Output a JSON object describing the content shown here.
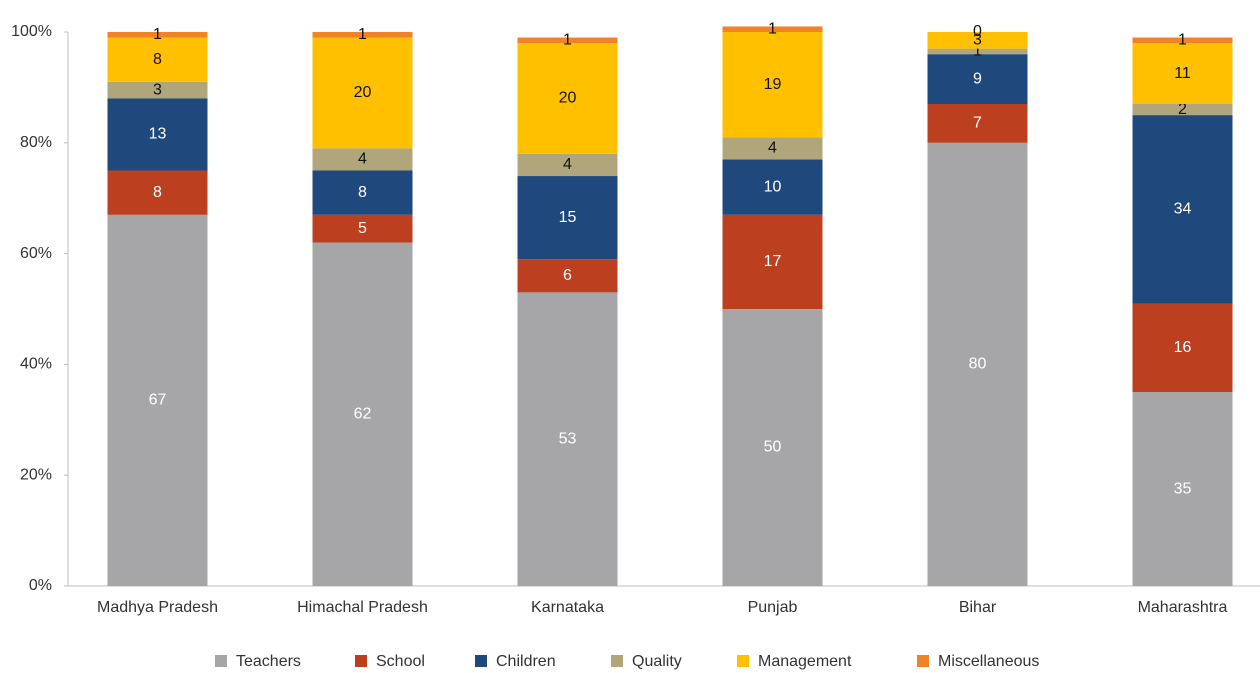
{
  "chart_data": {
    "type": "bar",
    "stacked": true,
    "categories": [
      "Madhya Pradesh",
      "Himachal Pradesh",
      "Karnataka",
      "Punjab",
      "Bihar",
      "Maharashtra"
    ],
    "series": [
      {
        "name": "Teachers",
        "color": "#a6a6a8",
        "values": [
          67,
          62,
          53,
          50,
          80,
          35
        ]
      },
      {
        "name": "School",
        "color": "#bc4020",
        "values": [
          8,
          5,
          6,
          17,
          7,
          16
        ]
      },
      {
        "name": "Children",
        "color": "#1f497d",
        "values": [
          13,
          8,
          15,
          10,
          9,
          34
        ]
      },
      {
        "name": "Quality",
        "color": "#b1a57c",
        "values": [
          3,
          4,
          4,
          4,
          1,
          2
        ]
      },
      {
        "name": "Management",
        "color": "#ffc000",
        "values": [
          8,
          20,
          20,
          19,
          3,
          11
        ]
      },
      {
        "name": "Miscellaneous",
        "color": "#f0822a",
        "values": [
          1,
          1,
          1,
          1,
          0,
          1
        ]
      }
    ],
    "ylim": [
      0,
      100
    ],
    "yticks": [
      {
        "value": 0,
        "label": "0%"
      },
      {
        "value": 20,
        "label": "20%"
      },
      {
        "value": 40,
        "label": "40%"
      },
      {
        "value": 60,
        "label": "60%"
      },
      {
        "value": 80,
        "label": "80%"
      },
      {
        "value": 100,
        "label": "100%"
      }
    ],
    "grid": false,
    "legend": "bottom"
  }
}
